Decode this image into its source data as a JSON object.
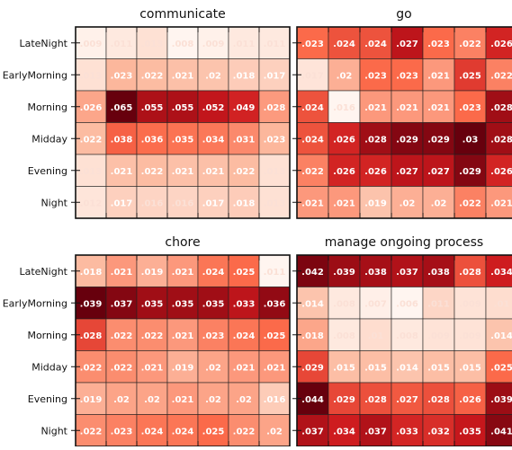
{
  "chart_data": {
    "type": "heatmap",
    "row_labels": [
      "LateNight",
      "EarlyMorning",
      "Morning",
      "Midday",
      "Evening",
      "Night"
    ],
    "charts": [
      {
        "title": "communicate",
        "values": [
          [
            ".009",
            ".011",
            ".013",
            ".008",
            ".009",
            ".011",
            ".011"
          ],
          [
            ".013",
            ".023",
            ".022",
            ".021",
            ".02",
            ".018",
            ".017"
          ],
          [
            ".026",
            ".065",
            ".055",
            ".055",
            ".052",
            ".049",
            ".028"
          ],
          [
            ".022",
            ".038",
            ".036",
            ".035",
            ".034",
            ".031",
            ".023"
          ],
          [
            ".013",
            ".021",
            ".022",
            ".021",
            ".021",
            ".022",
            ".013"
          ],
          [
            ".012",
            ".017",
            ".016",
            ".016",
            ".017",
            ".018",
            ".013"
          ]
        ]
      },
      {
        "title": "go",
        "values": [
          [
            ".023",
            ".024",
            ".024",
            ".027",
            ".023",
            ".022",
            ".026"
          ],
          [
            ".017",
            ".02",
            ".023",
            ".023",
            ".021",
            ".025",
            ".022"
          ],
          [
            ".024",
            ".016",
            ".021",
            ".021",
            ".021",
            ".023",
            ".028"
          ],
          [
            ".024",
            ".026",
            ".028",
            ".029",
            ".029",
            ".03",
            ".028"
          ],
          [
            ".022",
            ".026",
            ".026",
            ".027",
            ".027",
            ".029",
            ".026"
          ],
          [
            ".021",
            ".021",
            ".019",
            ".02",
            ".02",
            ".022",
            ".021"
          ]
        ]
      },
      {
        "title": "chore",
        "values": [
          [
            ".018",
            ".021",
            ".019",
            ".021",
            ".024",
            ".025",
            ".011"
          ],
          [
            ".039",
            ".037",
            ".035",
            ".035",
            ".035",
            ".033",
            ".036"
          ],
          [
            ".028",
            ".022",
            ".022",
            ".021",
            ".023",
            ".024",
            ".025"
          ],
          [
            ".022",
            ".022",
            ".021",
            ".019",
            ".02",
            ".021",
            ".021"
          ],
          [
            ".019",
            ".02",
            ".02",
            ".021",
            ".02",
            ".02",
            ".016"
          ],
          [
            ".022",
            ".023",
            ".024",
            ".024",
            ".025",
            ".022",
            ".02"
          ]
        ]
      },
      {
        "title": "manage ongoing process",
        "values": [
          [
            ".042",
            ".039",
            ".038",
            ".037",
            ".038",
            ".028",
            ".034"
          ],
          [
            ".014",
            ".008",
            ".007",
            ".006",
            ".011",
            ".009",
            ".01"
          ],
          [
            ".018",
            ".008",
            ".01",
            ".008",
            ".009",
            ".009",
            ".014"
          ],
          [
            ".029",
            ".015",
            ".015",
            ".014",
            ".015",
            ".015",
            ".025"
          ],
          [
            ".044",
            ".029",
            ".028",
            ".027",
            ".028",
            ".026",
            ".039"
          ],
          [
            ".037",
            ".034",
            ".037",
            ".033",
            ".032",
            ".035",
            ".041"
          ]
        ]
      }
    ]
  }
}
